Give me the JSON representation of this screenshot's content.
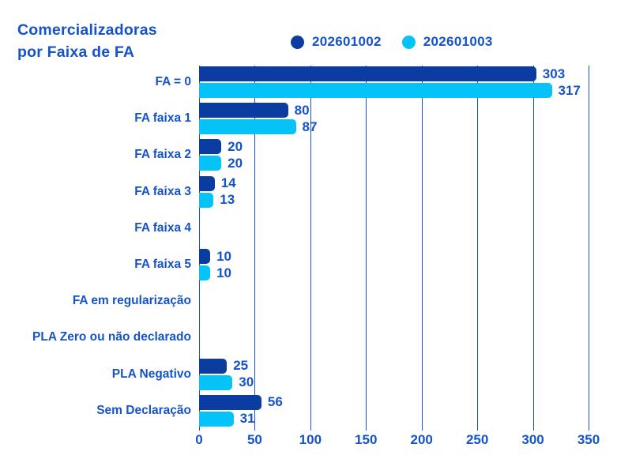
{
  "title": {
    "line1": "Comercializadoras",
    "line2": "por Faixa de FA"
  },
  "colors": {
    "series1": "#0b3da0",
    "series2": "#06c3f7",
    "text": "#1553c9",
    "grid": "#1553c9",
    "background": "#ffffff"
  },
  "legend": [
    {
      "label": "202601002",
      "color": "#0b3da0"
    },
    {
      "label": "202601003",
      "color": "#06c3f7"
    }
  ],
  "chart_data": {
    "type": "bar",
    "orientation": "horizontal",
    "title": "Comercializadoras por Faixa de FA",
    "categories": [
      "FA = 0",
      "FA faixa 1",
      "FA faixa 2",
      "FA faixa 3",
      "FA faixa 4",
      "FA faixa 5",
      "FA em regularização",
      "PLA Zero ou não declarado",
      "PLA Negativo",
      "Sem Declaração"
    ],
    "series": [
      {
        "name": "202601002",
        "color": "#0b3da0",
        "values": [
          303,
          80,
          20,
          14,
          0,
          10,
          0,
          0,
          25,
          56
        ]
      },
      {
        "name": "202601003",
        "color": "#06c3f7",
        "values": [
          317,
          87,
          20,
          13,
          0,
          10,
          0,
          0,
          30,
          31
        ]
      }
    ],
    "xlim": [
      0,
      350
    ],
    "xticks": [
      0,
      50,
      100,
      150,
      200,
      250,
      300,
      350
    ],
    "grid": true,
    "legend_position": "top",
    "value_labels": true
  }
}
